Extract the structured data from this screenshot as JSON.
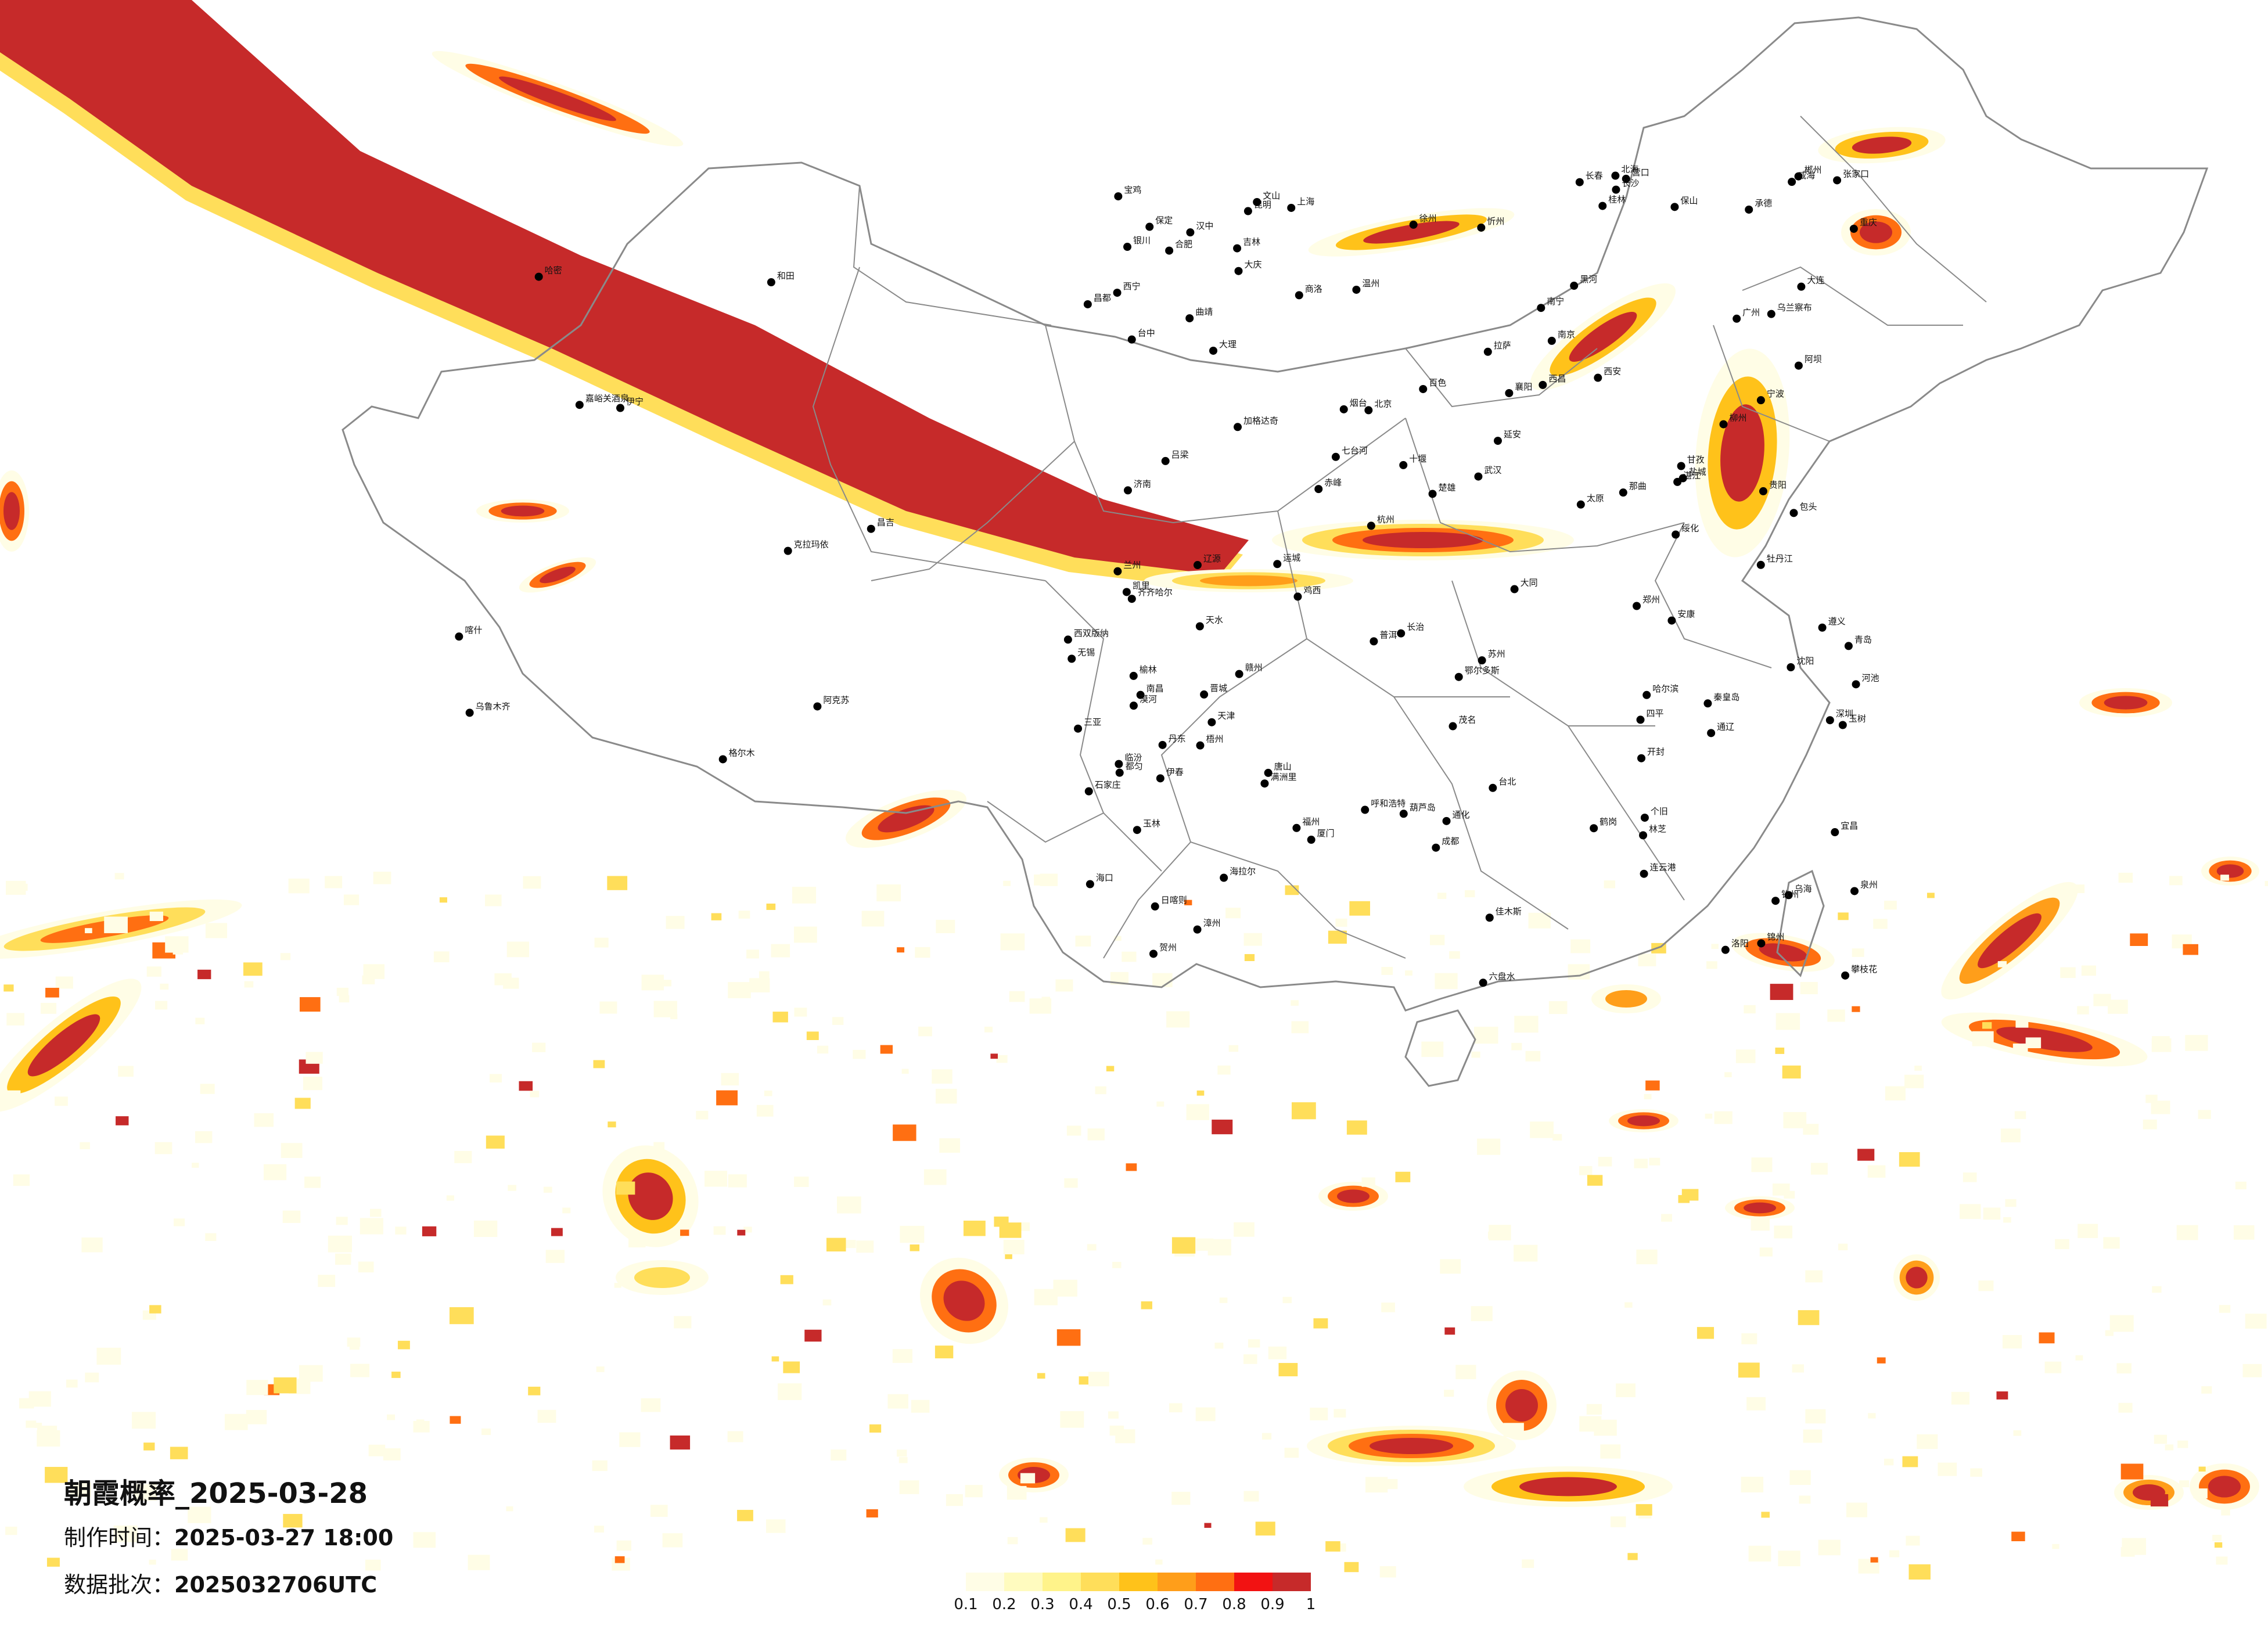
{
  "title": "朝霞概率_2025-03-28",
  "produced": {
    "label": "制作时间：",
    "value": "2025-03-27 18:00"
  },
  "batch": {
    "label": "数据批次：",
    "value": "2025032706UTC"
  },
  "legend": {
    "colors": [
      "#fffde6",
      "#fffbbf",
      "#fff38a",
      "#ffde5a",
      "#ffc21a",
      "#ff9e1a",
      "#ff6f12",
      "#f21212",
      "#c62a2a"
    ],
    "ticks": [
      "0.1",
      "0.2",
      "0.3",
      "0.4",
      "0.5",
      "0.6",
      "0.7",
      "0.8",
      "0.9",
      "1"
    ]
  },
  "city_labels": [
    "克拉玛依",
    "昌吉",
    "乌鲁木齐",
    "哈密",
    "伊宁",
    "阿克苏",
    "喀什",
    "和田",
    "嘉峪关酒泉",
    "格尔木",
    "西宁",
    "兰州",
    "银川",
    "乌海",
    "呼和浩特",
    "包头",
    "鄂尔多斯",
    "大同",
    "北京",
    "天津",
    "张家口",
    "承德",
    "赤峰",
    "沈阳",
    "长春",
    "吉林",
    "哈尔滨",
    "齐齐哈尔",
    "大庆",
    "绥化",
    "佳木斯",
    "鹤岗",
    "七台河",
    "鸡西",
    "牡丹江",
    "通辽",
    "四平",
    "辽源",
    "通化",
    "丹东",
    "大连",
    "营口",
    "锦州",
    "葫芦岛",
    "秦皇岛",
    "唐山",
    "石家庄",
    "保定",
    "太原",
    "济南",
    "青岛",
    "烟台",
    "威海",
    "郑州",
    "开封",
    "洛阳",
    "西安",
    "宝鸡",
    "天水",
    "汉中",
    "安康",
    "商洛",
    "延安",
    "榆林",
    "忻州",
    "吕梁",
    "长治",
    "晋城",
    "运城",
    "临汾",
    "南京",
    "上海",
    "杭州",
    "合肥",
    "武汉",
    "长沙",
    "南昌",
    "福州",
    "厦门",
    "广州",
    "深圳",
    "南宁",
    "桂林",
    "柳州",
    "贵阳",
    "遵义",
    "昆明",
    "成都",
    "重庆",
    "拉萨",
    "林芝",
    "日喀则",
    "昌都",
    "玉树",
    "那曲",
    "台中",
    "台北",
    "海口",
    "三亚",
    "湛江",
    "茂名",
    "漳州",
    "泉州",
    "温州",
    "宁波",
    "苏州",
    "无锡",
    "徐州",
    "连云港",
    "盐城",
    "赣州",
    "郴州",
    "宜昌",
    "襄阳",
    "十堰",
    "阿坝",
    "甘孜",
    "西昌",
    "攀枝花",
    "大理",
    "保山",
    "楚雄",
    "曲靖",
    "文山",
    "个旧",
    "西双版纳",
    "普洱",
    "凯里",
    "都匀",
    "六盘水",
    "钦州",
    "北海",
    "河池",
    "百色",
    "梧州",
    "玉林",
    "贺州",
    "乌兰察布",
    "海拉尔",
    "加格达奇",
    "伊春",
    "黑河",
    "漠河",
    "满洲里"
  ],
  "map_layers": [
    "boundaries",
    "probability",
    "cities"
  ]
}
